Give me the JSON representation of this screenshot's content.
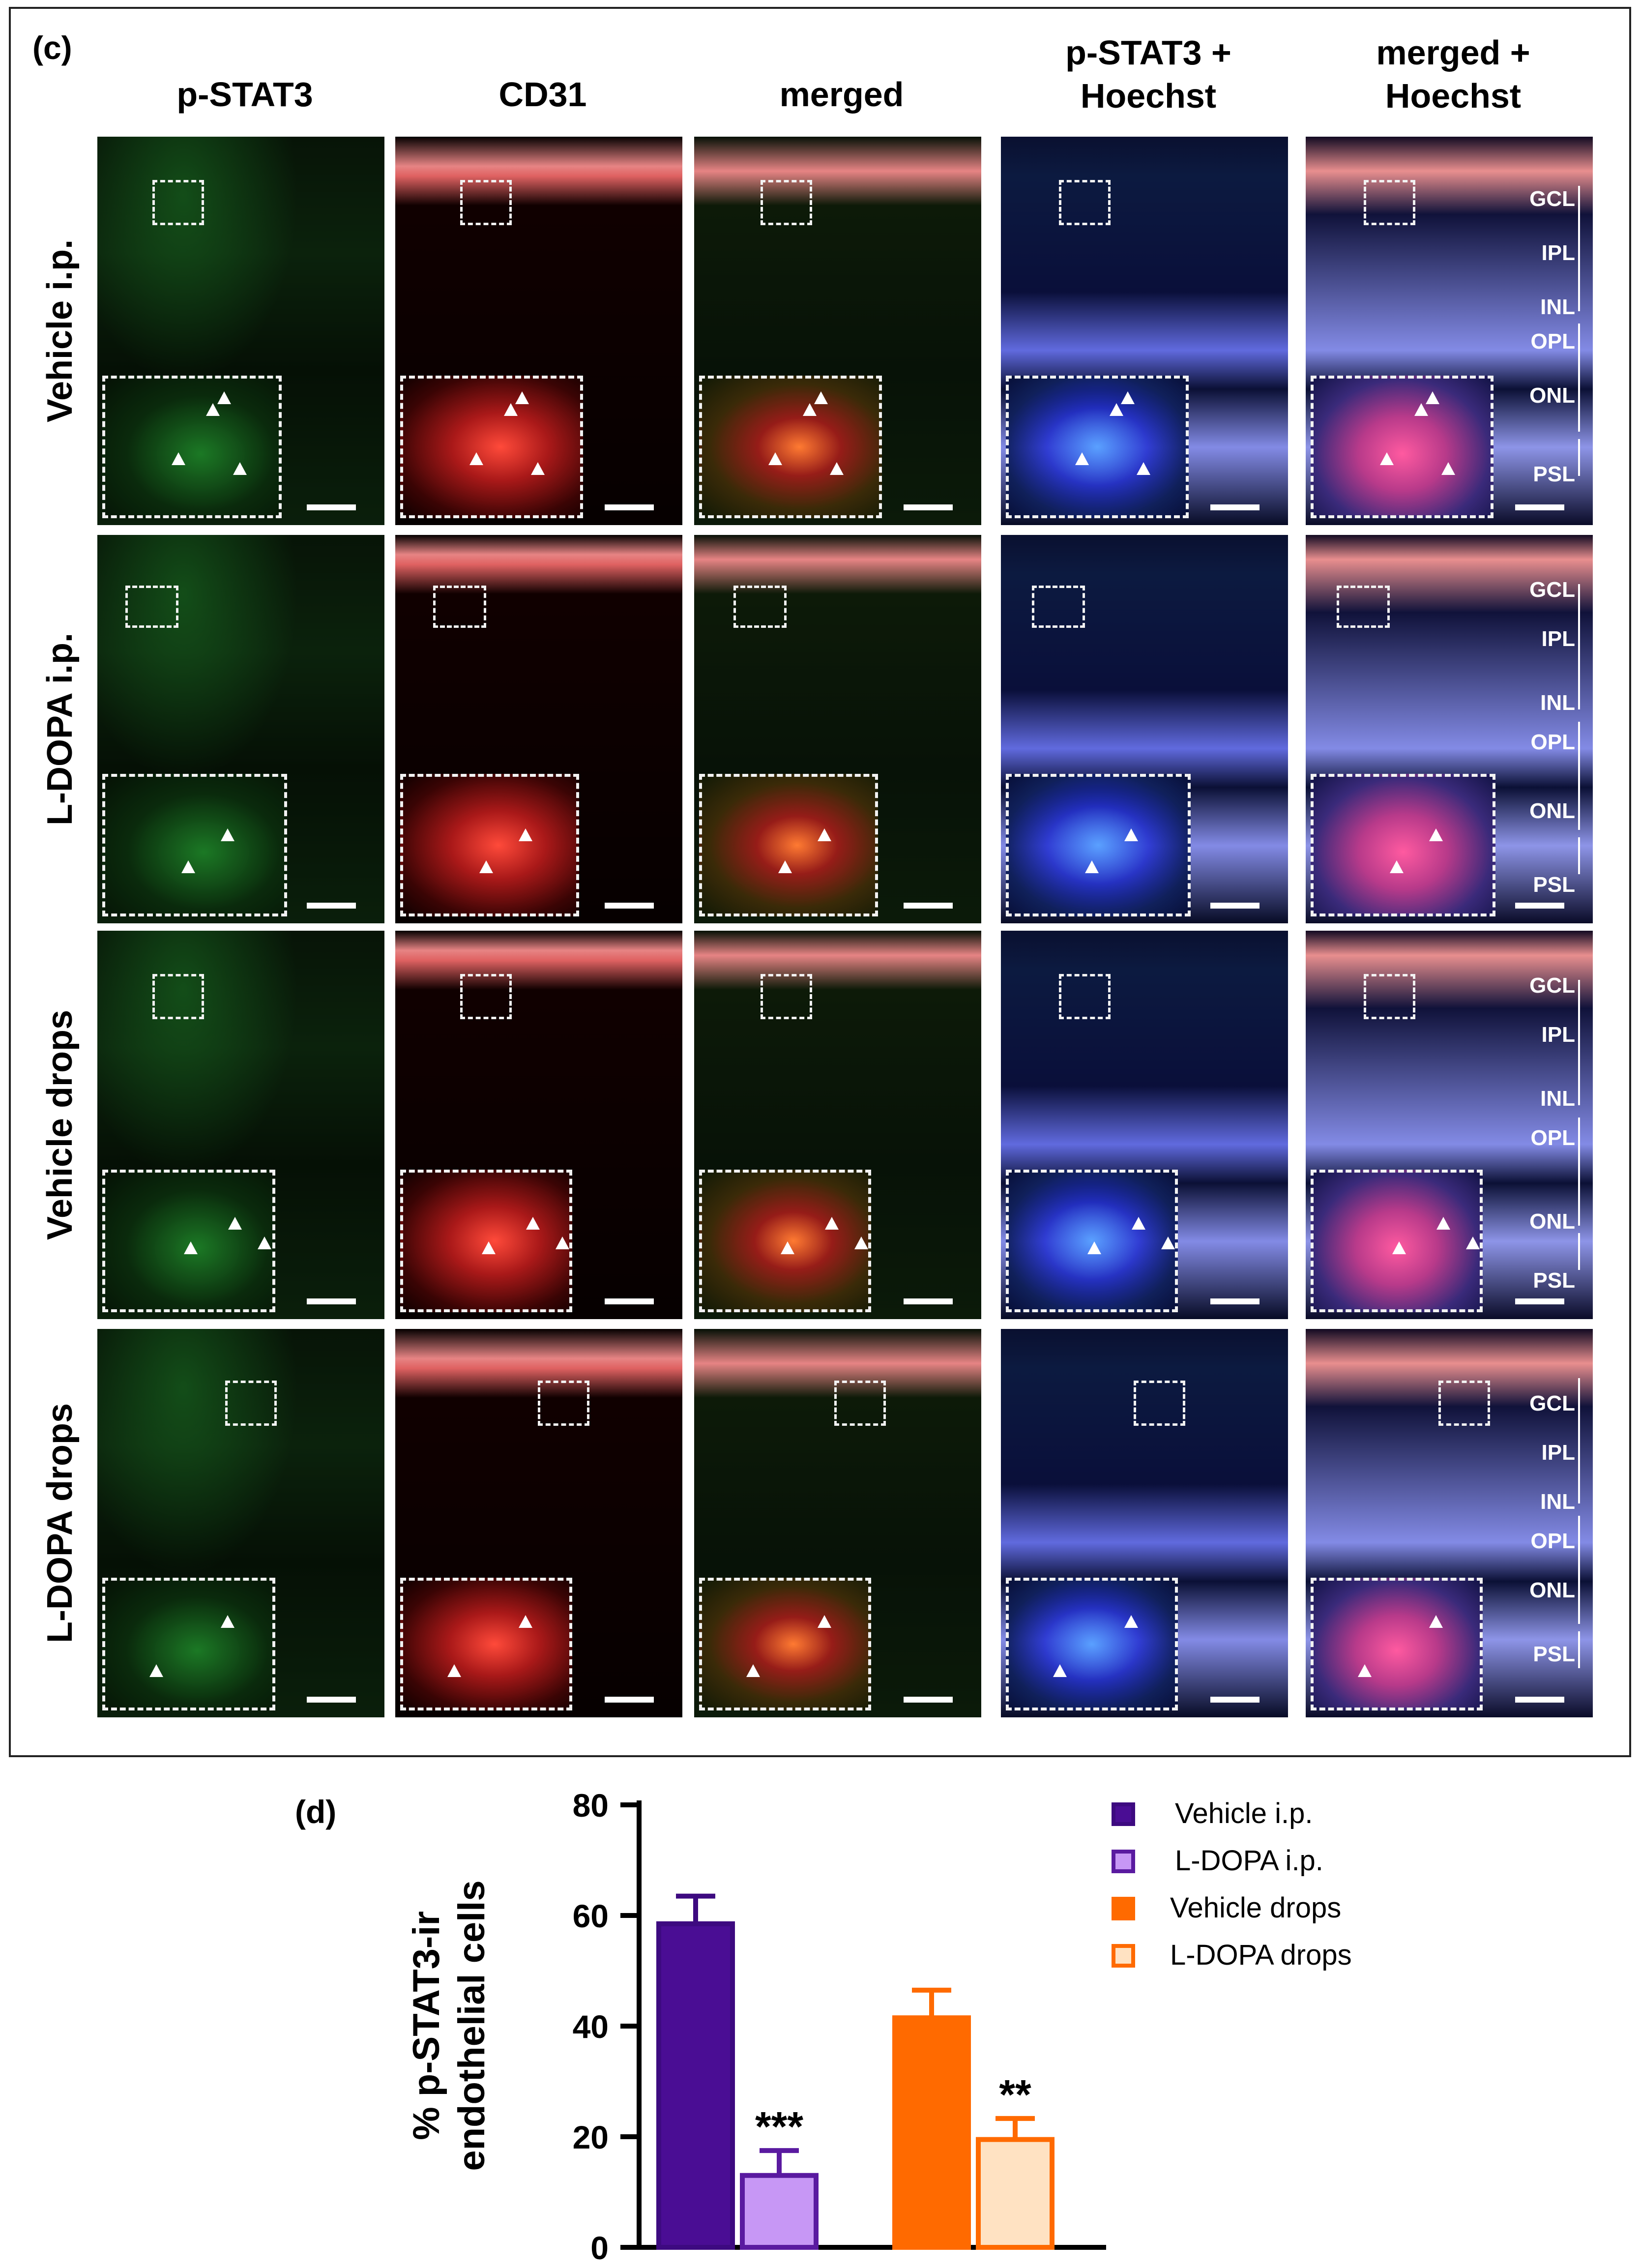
{
  "figure": {
    "panel_c": {
      "label": "(c)",
      "columns": [
        {
          "key": "pstat3",
          "title_line1": "p-STAT3",
          "title_line2": ""
        },
        {
          "key": "cd31",
          "title_line1": "CD31",
          "title_line2": ""
        },
        {
          "key": "merged",
          "title_line1": "merged",
          "title_line2": ""
        },
        {
          "key": "pstat3_hoechst",
          "title_line1": "p-STAT3 +",
          "title_line2": "Hoechst"
        },
        {
          "key": "merged_hoechst",
          "title_line1": "merged +",
          "title_line2": "Hoechst"
        }
      ],
      "rows": [
        {
          "key": "vehicle_ip",
          "label": "Vehicle i.p."
        },
        {
          "key": "ldopa_ip",
          "label": "L-DOPA i.p."
        },
        {
          "key": "vehicle_drops",
          "label": "Vehicle drops"
        },
        {
          "key": "ldopa_drops",
          "label": "L-DOPA drops"
        }
      ],
      "retinal_layers": [
        "GCL",
        "IPL",
        "INL",
        "OPL",
        "ONL",
        "PSL"
      ],
      "channel_colors": {
        "pstat3": "#1f8a2a",
        "cd31": "#d21f1f",
        "hoechst": "#1d2bd0"
      }
    },
    "panel_d": {
      "label": "(d)"
    }
  },
  "chart_data": {
    "type": "bar",
    "title": "",
    "xlabel": "",
    "ylabel_line1": "% p-STAT3-ir",
    "ylabel_line2": "endothelial cells",
    "ylim": [
      0,
      80
    ],
    "yticks": [
      "0",
      "20",
      "40",
      "60",
      "80"
    ],
    "series": [
      {
        "name": "Vehicle i.p.",
        "value": 58.5,
        "error": 5.0,
        "color": "#3d0a80",
        "fill": "#4a0d94",
        "significance": ""
      },
      {
        "name": "L-DOPA i.p.",
        "value": 13.0,
        "error": 4.5,
        "color": "#5a1aa0",
        "fill": "#c797f5",
        "significance": "***"
      },
      {
        "name": "Vehicle drops",
        "value": 41.5,
        "error": 5.0,
        "color": "#ff6a00",
        "fill": "#ff6a00",
        "significance": ""
      },
      {
        "name": "L-DOPA drops",
        "value": 19.5,
        "error": 3.8,
        "color": "#ff6a00",
        "fill": "#ffe2c2",
        "significance": "**"
      }
    ],
    "groups": [
      [
        "Vehicle i.p.",
        "L-DOPA i.p."
      ],
      [
        "Vehicle drops",
        "L-DOPA drops"
      ]
    ],
    "legend_position": "top-right",
    "legend_entries": [
      "Vehicle i.p.",
      "L-DOPA i.p.",
      "Vehicle drops",
      "L-DOPA drops"
    ]
  }
}
